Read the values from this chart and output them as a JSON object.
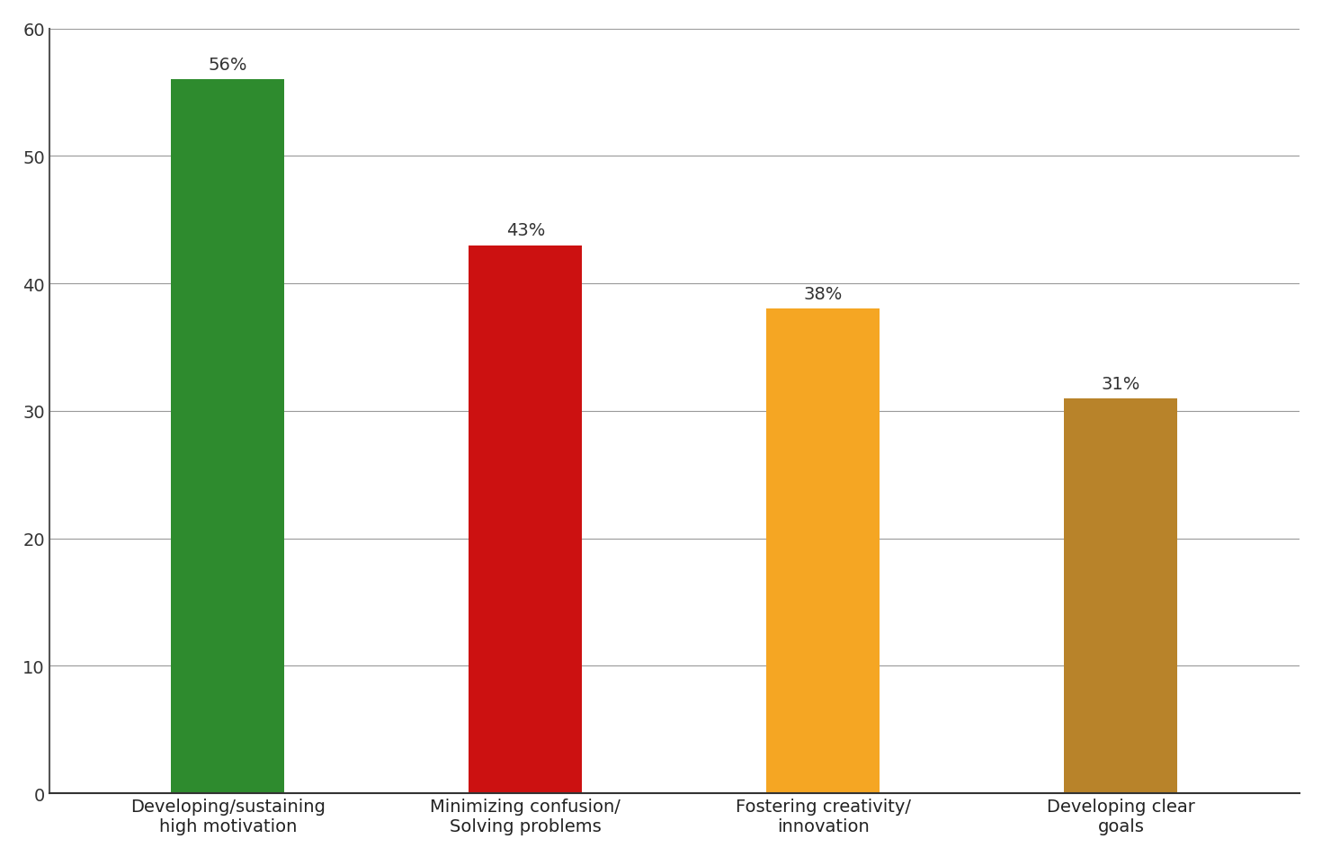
{
  "categories": [
    "Developing/sustaining\nhigh motivation",
    "Minimizing confusion/\nSolving problems",
    "Fostering creativity/\ninnovation",
    "Developing clear\ngoals"
  ],
  "values": [
    56,
    43,
    38,
    31
  ],
  "labels": [
    "56%",
    "43%",
    "38%",
    "31%"
  ],
  "bar_colors": [
    "#2e8b2e",
    "#cc1111",
    "#f5a623",
    "#b8832a"
  ],
  "ylim": [
    0,
    60
  ],
  "yticks": [
    0,
    10,
    20,
    30,
    40,
    50,
    60
  ],
  "background_color": "#ffffff",
  "grid_color": "#999999",
  "label_fontsize": 14,
  "tick_fontsize": 14,
  "value_label_fontsize": 14,
  "bar_width": 0.38
}
